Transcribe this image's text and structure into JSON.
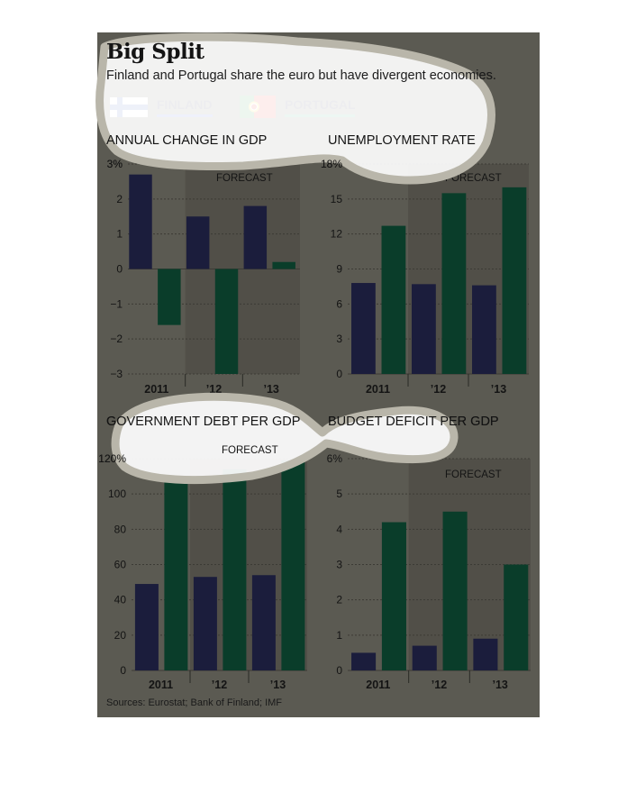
{
  "header": {
    "title": "Big Split",
    "subtitle": "Finland and Portugal share the euro but have divergent economies."
  },
  "legend": [
    {
      "label": "FINLAND",
      "color": "#1b1d3c",
      "underline": "#3a55c8",
      "flag": "finland-flag-icon"
    },
    {
      "label": "PORTUGAL",
      "color": "#0a3d2a",
      "underline": "#1f9a6a",
      "flag": "portugal-flag-icon"
    }
  ],
  "colors": {
    "finland": "#1b1d3c",
    "portugal": "#0a3d2a",
    "panel": "#5b5a52",
    "forecast_shade": "#514f48"
  },
  "source": "Sources: Eurostat; Bank of Finland; IMF",
  "chart_data": [
    {
      "type": "bar",
      "title": "ANNUAL CHANGE IN GDP",
      "categories": [
        "2011",
        "’12",
        "’13"
      ],
      "series": [
        {
          "name": "FINLAND",
          "values": [
            2.7,
            1.5,
            1.8
          ]
        },
        {
          "name": "PORTUGAL",
          "values": [
            -1.6,
            -3.0,
            0.2
          ]
        }
      ],
      "ylim": [
        -3,
        3
      ],
      "yticks": [
        "3%",
        "2",
        "1",
        "0",
        "−1",
        "−2",
        "−3"
      ],
      "ytick_values": [
        3,
        2,
        1,
        0,
        -1,
        -2,
        -3
      ],
      "forecast_label": "FORECAST",
      "grid": true
    },
    {
      "type": "bar",
      "title": "UNEMPLOYMENT RATE",
      "categories": [
        "2011",
        "’12",
        "’13"
      ],
      "series": [
        {
          "name": "FINLAND",
          "values": [
            7.8,
            7.7,
            7.6
          ]
        },
        {
          "name": "PORTUGAL",
          "values": [
            12.7,
            15.5,
            16.0
          ]
        }
      ],
      "ylim": [
        0,
        18
      ],
      "yticks": [
        "18%",
        "15",
        "12",
        "9",
        "6",
        "3",
        "0"
      ],
      "ytick_values": [
        18,
        15,
        12,
        9,
        6,
        3,
        0
      ],
      "forecast_label": "FORECAST",
      "grid": true
    },
    {
      "type": "bar",
      "title": "GOVERNMENT DEBT PER GDP",
      "categories": [
        "2011",
        "’12",
        "’13"
      ],
      "series": [
        {
          "name": "FINLAND",
          "values": [
            49,
            53,
            54
          ]
        },
        {
          "name": "PORTUGAL",
          "values": [
            107,
            114,
            119
          ]
        }
      ],
      "ylim": [
        0,
        120
      ],
      "yticks": [
        "120%",
        "100",
        "80",
        "60",
        "40",
        "20",
        "0"
      ],
      "ytick_values": [
        120,
        100,
        80,
        60,
        40,
        20,
        0
      ],
      "forecast_label": "FORECAST",
      "grid": true
    },
    {
      "type": "bar",
      "title": "BUDGET DEFICIT PER GDP",
      "categories": [
        "2011",
        "’12",
        "’13"
      ],
      "series": [
        {
          "name": "FINLAND",
          "values": [
            0.5,
            0.7,
            0.9
          ]
        },
        {
          "name": "PORTUGAL",
          "values": [
            4.2,
            4.5,
            3.0
          ]
        }
      ],
      "ylim": [
        0,
        6
      ],
      "yticks": [
        "6%",
        "5",
        "4",
        "3",
        "2",
        "1",
        "0"
      ],
      "ytick_values": [
        6,
        5,
        4,
        3,
        2,
        1,
        0
      ],
      "forecast_label": "FORECAST",
      "grid": true
    }
  ]
}
